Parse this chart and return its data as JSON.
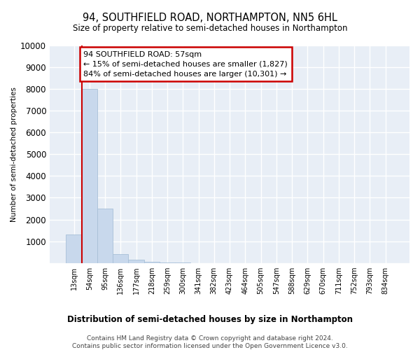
{
  "title": "94, SOUTHFIELD ROAD, NORTHAMPTON, NN5 6HL",
  "subtitle": "Size of property relative to semi-detached houses in Northampton",
  "xlabel_bottom": "Distribution of semi-detached houses by size in Northampton",
  "ylabel": "Number of semi-detached properties",
  "categories": [
    "13sqm",
    "54sqm",
    "95sqm",
    "136sqm",
    "177sqm",
    "218sqm",
    "259sqm",
    "300sqm",
    "341sqm",
    "382sqm",
    "423sqm",
    "464sqm",
    "505sqm",
    "547sqm",
    "588sqm",
    "629sqm",
    "670sqm",
    "711sqm",
    "752sqm",
    "793sqm",
    "834sqm"
  ],
  "values": [
    1300,
    8000,
    2500,
    400,
    150,
    50,
    20,
    10,
    0,
    0,
    0,
    0,
    0,
    0,
    0,
    0,
    0,
    0,
    0,
    0,
    0
  ],
  "bar_color": "#c8d8ec",
  "bar_edge_color": "#a8c0d8",
  "red_line_x": 0.5,
  "annotation_title": "94 SOUTHFIELD ROAD: 57sqm",
  "annotation_line1": "← 15% of semi-detached houses are smaller (1,827)",
  "annotation_line2": "84% of semi-detached houses are larger (10,301) →",
  "annotation_box_color": "#ffffff",
  "annotation_box_edge": "#cc0000",
  "ylim": [
    0,
    10000
  ],
  "yticks": [
    0,
    1000,
    2000,
    3000,
    4000,
    5000,
    6000,
    7000,
    8000,
    9000,
    10000
  ],
  "background_color": "#e8eef6",
  "footer1": "Contains HM Land Registry data © Crown copyright and database right 2024.",
  "footer2": "Contains public sector information licensed under the Open Government Licence v3.0."
}
